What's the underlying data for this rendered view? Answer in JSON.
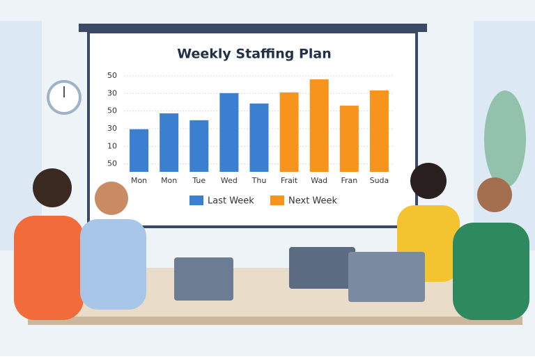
{
  "chart_data": {
    "type": "bar",
    "title": "Weekly Staffing Plan",
    "categories": [
      "Mon",
      "Mon",
      "Tue",
      "Wed",
      "Thu",
      "Frait",
      "Wad",
      "Fran",
      "Suda"
    ],
    "series": [
      {
        "name": "Last Week",
        "color": "#3b7fd0",
        "values": [
          1.97,
          2.87,
          2.48,
          4.02,
          3.43,
          null,
          null,
          null,
          null
        ]
      },
      {
        "name": "Next Week",
        "color": "#f7941d",
        "values": [
          null,
          null,
          null,
          null,
          null,
          4.06,
          4.8,
          3.31,
          4.17
        ]
      }
    ],
    "ylim": [
      -0.45,
      5
    ],
    "yticks": [
      {
        "value": 0,
        "label": "50"
      },
      {
        "value": 1,
        "label": "10"
      },
      {
        "value": 2,
        "label": "30"
      },
      {
        "value": 3,
        "label": "50"
      },
      {
        "value": 4,
        "label": "30"
      },
      {
        "value": 5,
        "label": "50"
      }
    ],
    "grid": true,
    "legend": "bottom"
  }
}
